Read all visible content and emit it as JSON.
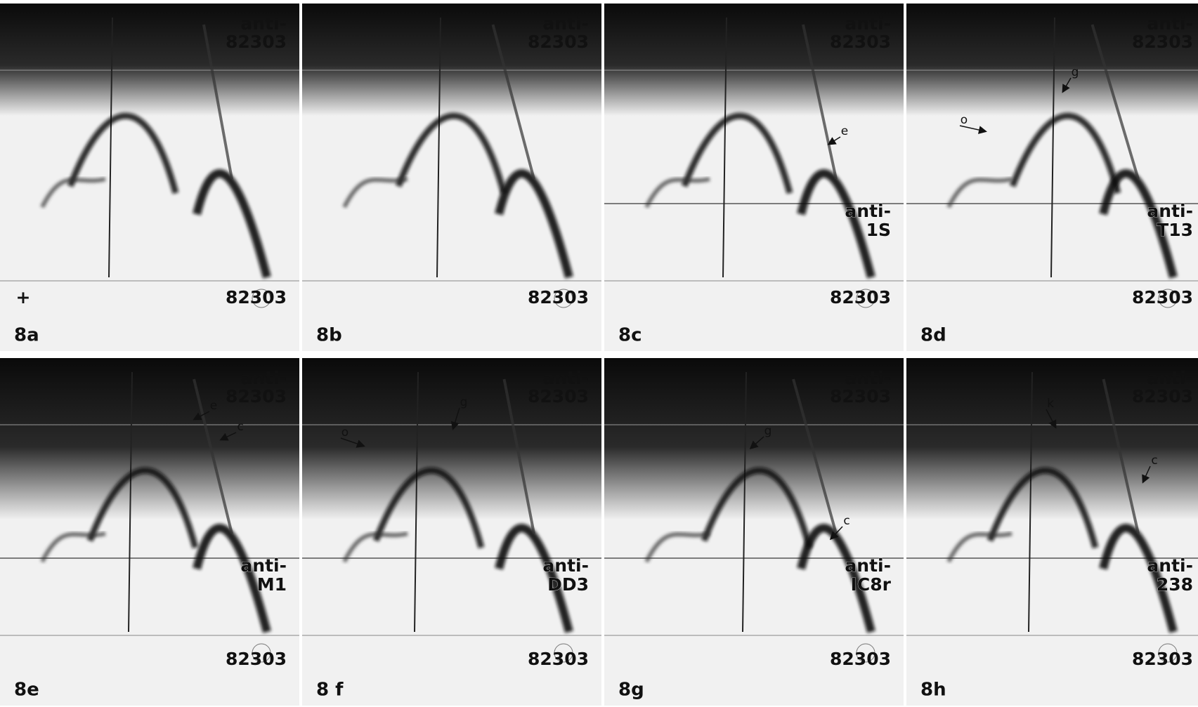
{
  "panels": [
    {
      "label": "8a",
      "top_label": [
        "anti-",
        "82303"
      ],
      "bottom_label": "82303",
      "annotations": [
        "+"
      ]
    },
    {
      "label": "8b",
      "top_label": [
        "anti-",
        "82303"
      ],
      "bottom_label": "82303",
      "annotations": []
    },
    {
      "label": "8c",
      "top_label": [
        "anti-",
        "82303"
      ],
      "mid_label": [
        "anti-",
        "1S"
      ],
      "bottom_label": "82303",
      "annotations": [
        "e"
      ]
    },
    {
      "label": "8d",
      "top_label": [
        "anti-",
        "82303"
      ],
      "mid_label": [
        "anti-",
        "T13"
      ],
      "bottom_label": "82303",
      "annotations": [
        "o",
        "g"
      ]
    },
    {
      "label": "8e",
      "top_label": [
        "anti-",
        "82303"
      ],
      "mid_label": [
        "anti-",
        "M1"
      ],
      "bottom_label": "82303",
      "annotations": [
        "e",
        "c"
      ]
    },
    {
      "label": "8 f",
      "top_label": [
        "anti-",
        "82303"
      ],
      "mid_label": [
        "anti-",
        "DD3"
      ],
      "bottom_label": "82303",
      "annotations": [
        "o",
        "g"
      ]
    },
    {
      "label": "8g",
      "top_label": [
        "anti-",
        "82303"
      ],
      "mid_label": [
        "anti-",
        "IC8r"
      ],
      "bottom_label": "82303",
      "annotations": [
        "g",
        "c"
      ]
    },
    {
      "label": "8h",
      "top_label": [
        "anti-",
        "82303"
      ],
      "mid_label": [
        "anti-",
        "238"
      ],
      "bottom_label": "82303",
      "annotations": [
        "k",
        "c"
      ]
    }
  ]
}
